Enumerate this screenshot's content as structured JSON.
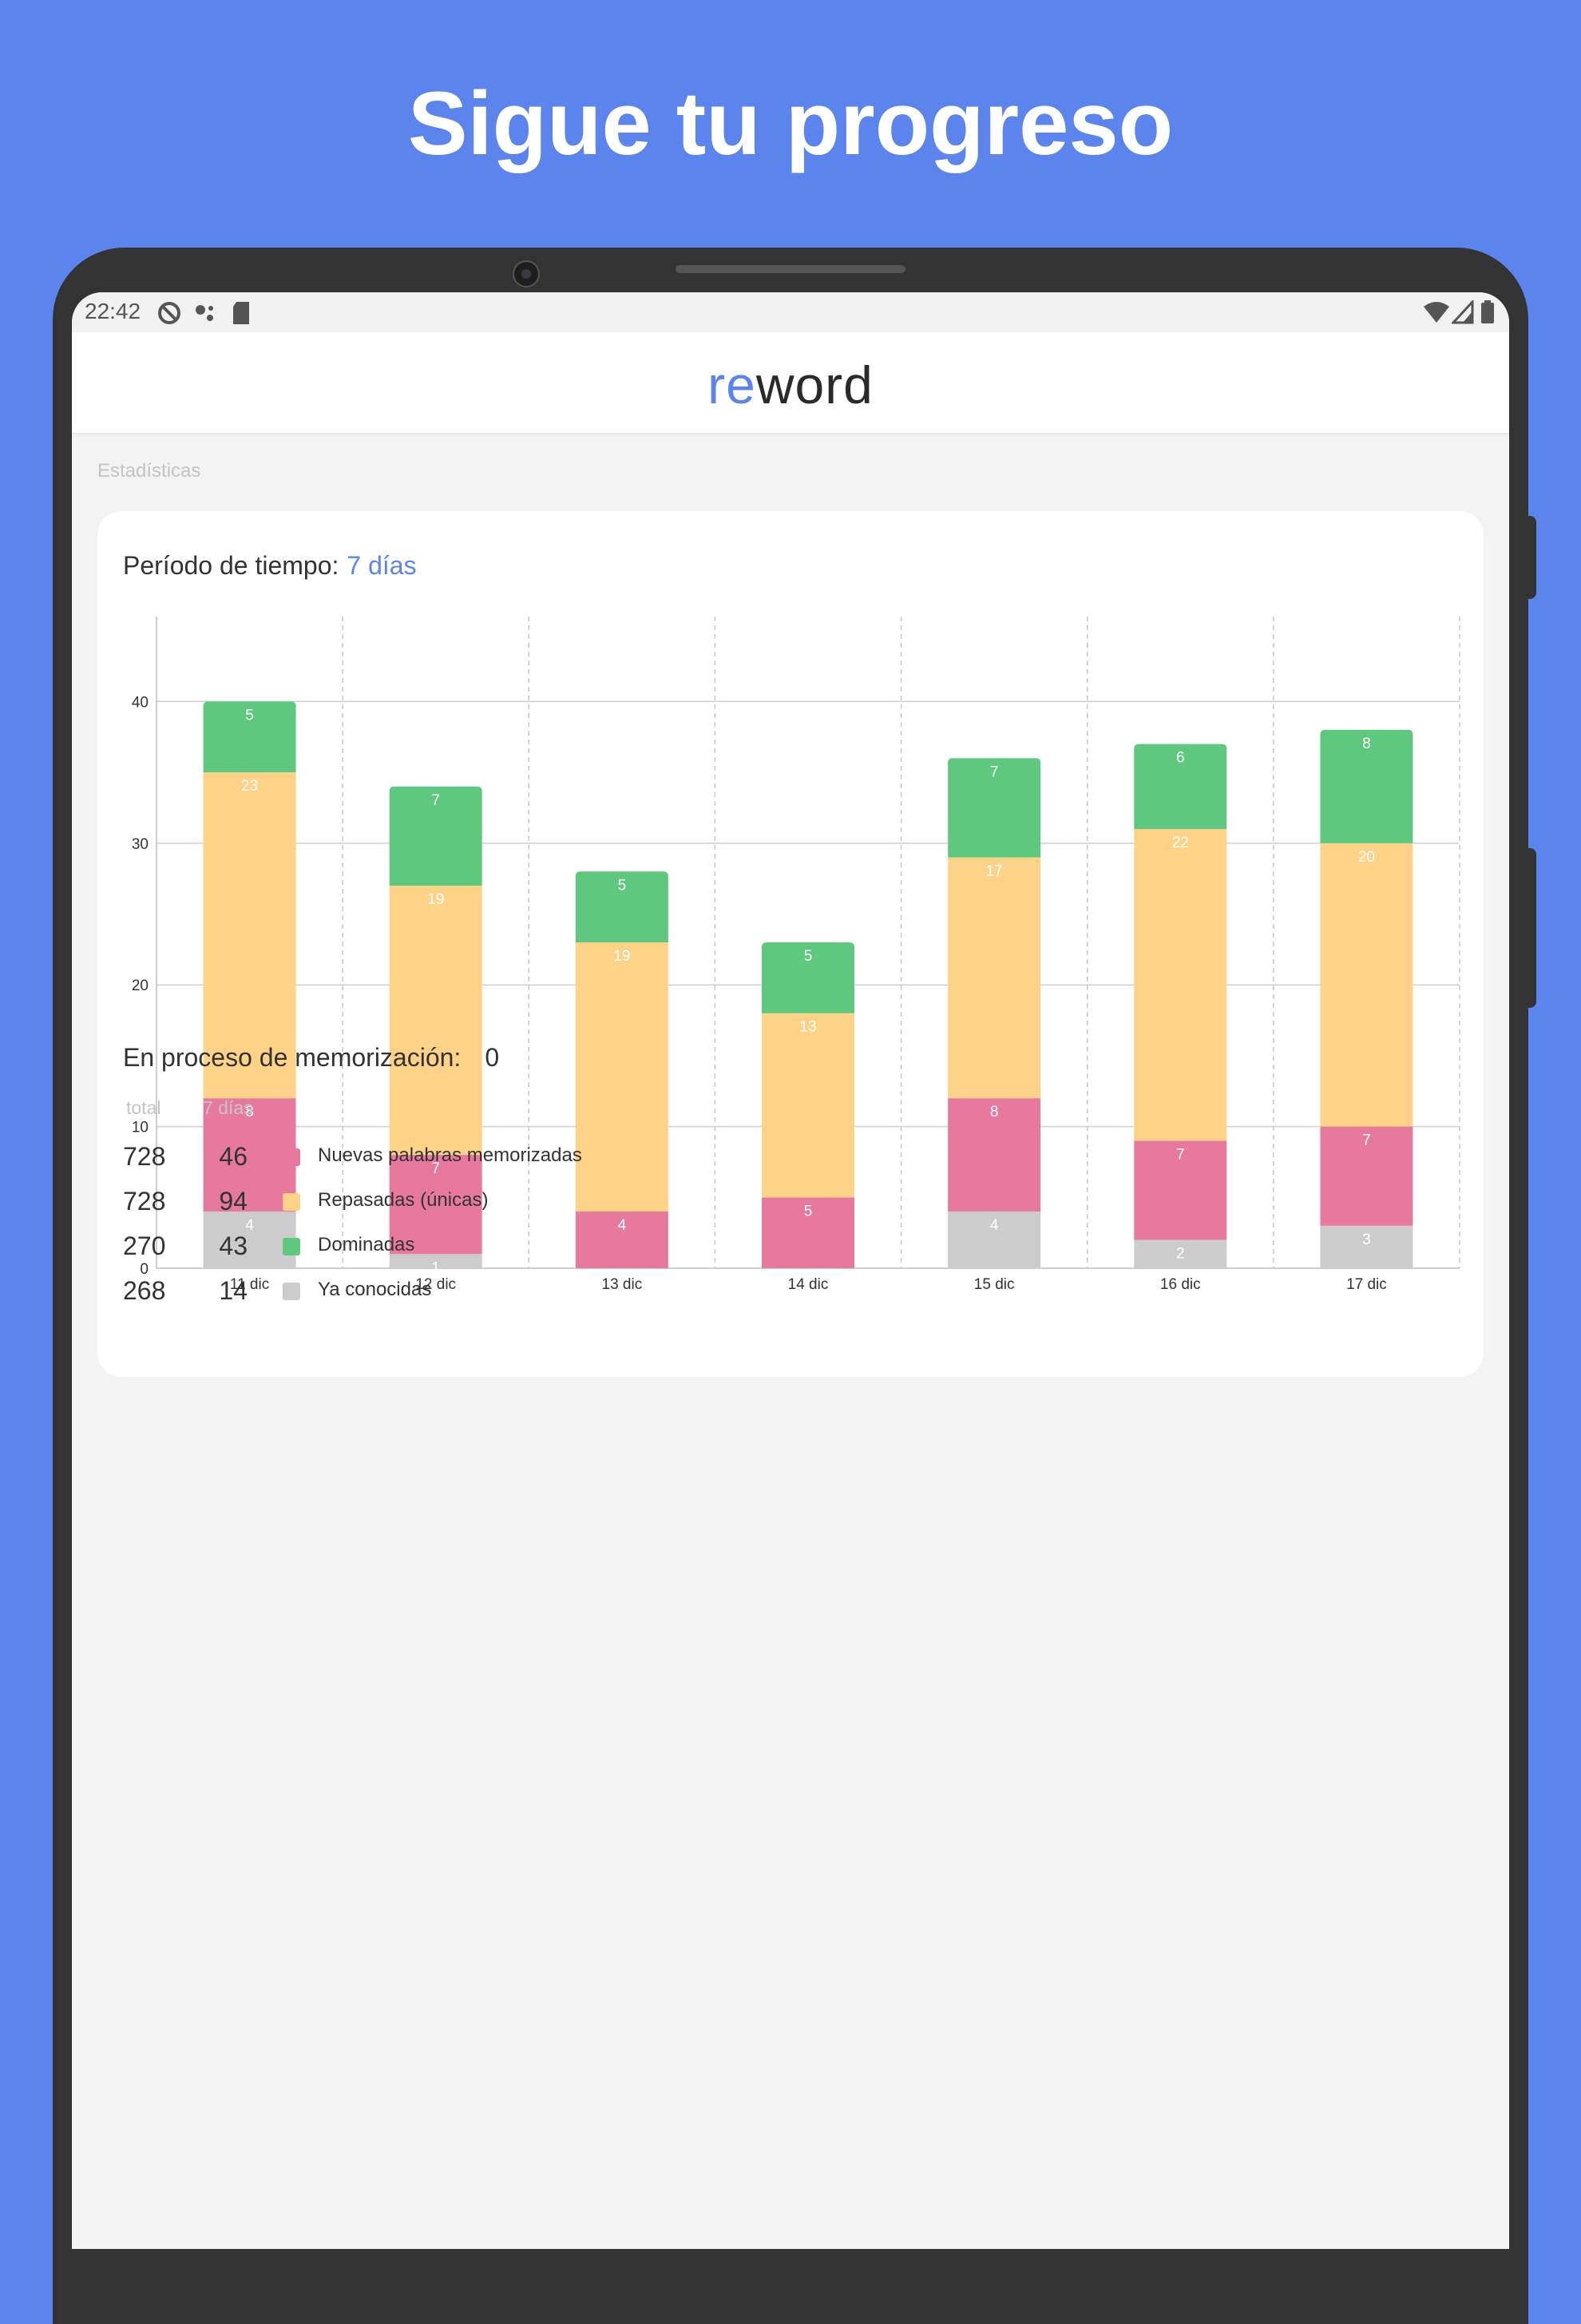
{
  "headline": "Sigue tu progreso",
  "status_bar": {
    "time": "22:42",
    "icons": [
      "do-not-disturb-icon",
      "assistant-icon",
      "sd-card-icon",
      "wifi-icon",
      "cell-signal-icon",
      "battery-icon"
    ]
  },
  "app": {
    "logo_prefix": "re",
    "logo_suffix": "word",
    "accent_color": "#5b85ed"
  },
  "section_label": "Estadísticas",
  "period": {
    "label": "Período de tiempo:",
    "value": "7 días"
  },
  "chart_data": {
    "type": "bar",
    "stacked": true,
    "categories": [
      "11 dic",
      "12 dic",
      "13 dic",
      "14 dic",
      "15 dic",
      "16 dic",
      "17 dic"
    ],
    "y_ticks": [
      "0",
      "10",
      "20",
      "30",
      "40"
    ],
    "ylim": [
      0,
      46
    ],
    "grid": true,
    "series": [
      {
        "name": "Ya conocidas",
        "color": "#cccccc",
        "values": [
          4,
          1,
          null,
          null,
          4,
          2,
          3
        ]
      },
      {
        "name": "Nuevas palabras memorizadas",
        "color": "#e8799e",
        "values": [
          8,
          7,
          4,
          5,
          8,
          7,
          7
        ]
      },
      {
        "name": "Repasadas (únicas)",
        "color": "#ffd387",
        "values": [
          23,
          19,
          19,
          13,
          17,
          22,
          20
        ]
      },
      {
        "name": "Dominadas",
        "color": "#5ec97e",
        "values": [
          5,
          7,
          5,
          5,
          7,
          6,
          8
        ]
      }
    ]
  },
  "memorization": {
    "label": "En proceso de memorización:",
    "value": "0"
  },
  "stats": {
    "header_total": "total",
    "header_week": "7 días",
    "rows": [
      {
        "total": "728",
        "week": "46",
        "label": "Nuevas palabras memorizadas",
        "color": "#e8799e"
      },
      {
        "total": "728",
        "week": "94",
        "label": "Repasadas (únicas)",
        "color": "#ffd387"
      },
      {
        "total": "270",
        "week": "43",
        "label": "Dominadas",
        "color": "#5ec97e"
      },
      {
        "total": "268",
        "week": "14",
        "label": "Ya conocidas",
        "color": "#cccccc"
      }
    ]
  }
}
